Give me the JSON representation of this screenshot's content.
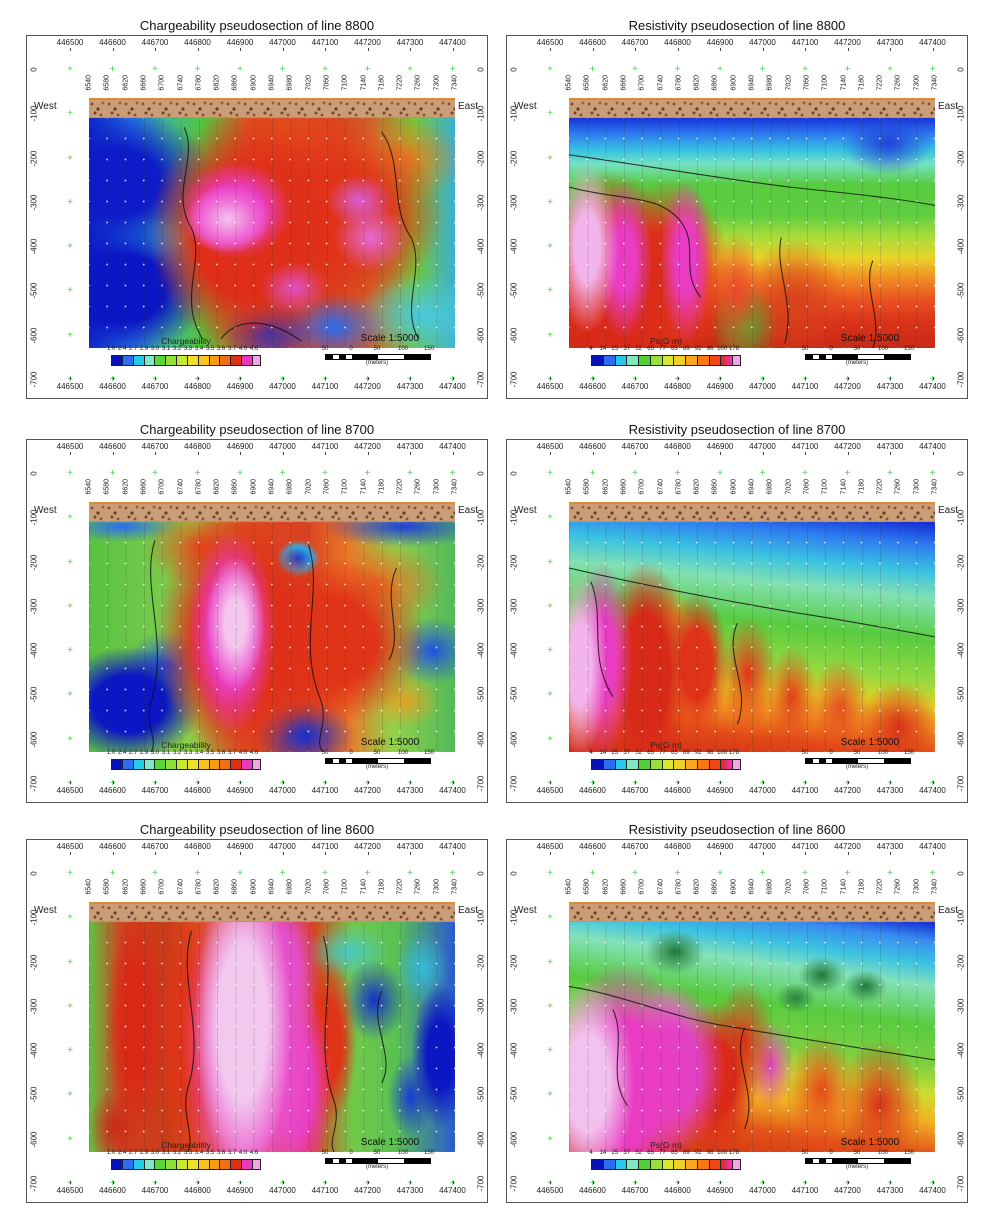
{
  "shared": {
    "west_label": "West",
    "east_label": "East",
    "eastings": [
      "446500",
      "446600",
      "446700",
      "446800",
      "446900",
      "447000",
      "447100",
      "447200",
      "447300",
      "447400"
    ],
    "stations": [
      "6540",
      "6580",
      "6620",
      "6660",
      "6700",
      "6740",
      "6780",
      "6820",
      "6860",
      "6900",
      "6940",
      "6980",
      "7020",
      "7060",
      "7100",
      "7140",
      "7180",
      "7220",
      "7260",
      "7300",
      "7340"
    ],
    "depths": [
      "0",
      "-100",
      "-200",
      "-300",
      "-400",
      "-500",
      "-600",
      "-700"
    ],
    "scale": {
      "title": "Scale 1:5000",
      "bar_labels": [
        "50",
        "0",
        "50",
        "100",
        "150"
      ],
      "unit": "(meters)"
    },
    "cross_color": "#3ec944",
    "colorbars": {
      "chargeability": {
        "title": "Chargeability",
        "ticks": [
          "1.0",
          "2.4",
          "2.7",
          "2.9",
          "3.0",
          "3.1",
          "3.2",
          "3.3",
          "3.4",
          "3.5",
          "3.6",
          "3.7",
          "4.0",
          "4.6"
        ],
        "colors": [
          "#0713b8",
          "#2e6cf0",
          "#28c8e8",
          "#80e8c8",
          "#58d838",
          "#90e038",
          "#c8e830",
          "#f0e028",
          "#f8c420",
          "#f89c18",
          "#f07018",
          "#e03018",
          "#e838c0"
        ],
        "tail_color": "#f2a6e6"
      },
      "resistivity": {
        "title": "Ps(Ω·m)",
        "ticks": [
          "4",
          "14",
          "25",
          "37",
          "52",
          "65",
          "77",
          "85",
          "89",
          "92",
          "96",
          "100",
          "178"
        ],
        "colors": [
          "#0713b8",
          "#2e6cf0",
          "#28c8e8",
          "#80e8c0",
          "#50d038",
          "#98e038",
          "#d8e830",
          "#f0d028",
          "#f8a820",
          "#f87818",
          "#f04818",
          "#e02818,#e838c0"
        ],
        "tail_color": "#f2a6e6"
      }
    }
  },
  "panels": [
    {
      "id": "panel-chargeability-8800",
      "title": "Chargeability pseudosection of line 8800",
      "colorbar": "chargeability",
      "section_style": "c8800"
    },
    {
      "id": "panel-resistivity-8800",
      "title": "Resistivity pseudosection of line 8800",
      "colorbar": "resistivity",
      "section_style": "r8800"
    },
    {
      "id": "panel-chargeability-8700",
      "title": "Chargeability pseudosection of line 8700",
      "colorbar": "chargeability",
      "section_style": "c8700"
    },
    {
      "id": "panel-resistivity-8700",
      "title": "Resistivity pseudosection of line 8700",
      "colorbar": "resistivity",
      "section_style": "r8700"
    },
    {
      "id": "panel-chargeability-8600",
      "title": "Chargeability pseudosection of line 8600",
      "colorbar": "chargeability",
      "section_style": "c8600"
    },
    {
      "id": "panel-resistivity-8600",
      "title": "Resistivity pseudosection of line 8600",
      "colorbar": "resistivity",
      "section_style": "r8600"
    }
  ],
  "chart_data": [
    {
      "type": "heatmap",
      "title": "Chargeability pseudosection of line 8800",
      "line": 8800,
      "quantity": "Chargeability",
      "x_easting_ticks": [
        446500,
        446600,
        446700,
        446800,
        446900,
        447000,
        447100,
        447200,
        447300,
        447400
      ],
      "station_ticks": [
        6540,
        6580,
        6620,
        6660,
        6700,
        6740,
        6780,
        6820,
        6860,
        6900,
        6940,
        6980,
        7020,
        7060,
        7100,
        7140,
        7180,
        7220,
        7260,
        7300,
        7340
      ],
      "depth_ticks_m": [
        0,
        -100,
        -200,
        -300,
        -400,
        -500,
        -600,
        -700
      ],
      "orientation_labels": [
        "West",
        "East"
      ],
      "colorbar_label": "Chargeability",
      "colorbar_ticks": [
        1.0,
        2.4,
        2.7,
        2.9,
        3.0,
        3.1,
        3.2,
        3.3,
        3.4,
        3.5,
        3.6,
        3.7,
        4.0,
        4.6
      ],
      "scale": "Scale 1:5000",
      "scale_bar_meters": [
        50,
        0,
        50,
        100,
        150
      ]
    },
    {
      "type": "heatmap",
      "title": "Resistivity pseudosection of line 8800",
      "line": 8800,
      "quantity": "Resistivity",
      "x_easting_ticks": [
        446500,
        446600,
        446700,
        446800,
        446900,
        447000,
        447100,
        447200,
        447300,
        447400
      ],
      "station_ticks": [
        6540,
        6580,
        6620,
        6660,
        6700,
        6740,
        6780,
        6820,
        6860,
        6900,
        6940,
        6980,
        7020,
        7060,
        7100,
        7140,
        7180,
        7220,
        7260,
        7300,
        7340
      ],
      "depth_ticks_m": [
        0,
        -100,
        -200,
        -300,
        -400,
        -500,
        -600,
        -700
      ],
      "orientation_labels": [
        "West",
        "East"
      ],
      "colorbar_label": "Ps(Ω·m)",
      "colorbar_ticks": [
        4,
        14,
        25,
        37,
        52,
        65,
        77,
        85,
        89,
        92,
        96,
        100,
        178
      ],
      "scale": "Scale 1:5000",
      "scale_bar_meters": [
        50,
        0,
        50,
        100,
        150
      ]
    },
    {
      "type": "heatmap",
      "title": "Chargeability pseudosection of line 8700",
      "line": 8700,
      "quantity": "Chargeability",
      "x_easting_ticks": [
        446500,
        446600,
        446700,
        446800,
        446900,
        447000,
        447100,
        447200,
        447300,
        447400
      ],
      "station_ticks": [
        6540,
        6580,
        6620,
        6660,
        6700,
        6740,
        6780,
        6820,
        6860,
        6900,
        6940,
        6980,
        7020,
        7060,
        7100,
        7140,
        7180,
        7220,
        7260,
        7300,
        7340
      ],
      "depth_ticks_m": [
        0,
        -100,
        -200,
        -300,
        -400,
        -500,
        -600,
        -700
      ],
      "orientation_labels": [
        "West",
        "East"
      ],
      "colorbar_label": "Chargeability",
      "colorbar_ticks": [
        1.0,
        2.4,
        2.7,
        2.9,
        3.0,
        3.1,
        3.2,
        3.3,
        3.4,
        3.5,
        3.6,
        3.7,
        4.0,
        4.6
      ],
      "scale": "Scale 1:5000",
      "scale_bar_meters": [
        50,
        0,
        50,
        100,
        150
      ]
    },
    {
      "type": "heatmap",
      "title": "Resistivity pseudosection of line 8700",
      "line": 8700,
      "quantity": "Resistivity",
      "x_easting_ticks": [
        446500,
        446600,
        446700,
        446800,
        446900,
        447000,
        447100,
        447200,
        447300,
        447400
      ],
      "station_ticks": [
        6540,
        6580,
        6620,
        6660,
        6700,
        6740,
        6780,
        6820,
        6860,
        6900,
        6940,
        6980,
        7020,
        7060,
        7100,
        7140,
        7180,
        7220,
        7260,
        7300,
        7340
      ],
      "depth_ticks_m": [
        0,
        -100,
        -200,
        -300,
        -400,
        -500,
        -600,
        -700
      ],
      "orientation_labels": [
        "West",
        "East"
      ],
      "colorbar_label": "Ps(Ω·m)",
      "colorbar_ticks": [
        4,
        14,
        25,
        37,
        52,
        65,
        77,
        85,
        89,
        92,
        96,
        100,
        178
      ],
      "scale": "Scale 1:5000",
      "scale_bar_meters": [
        50,
        0,
        50,
        100,
        150
      ]
    },
    {
      "type": "heatmap",
      "title": "Chargeability pseudosection of line 8600",
      "line": 8600,
      "quantity": "Chargeability",
      "x_easting_ticks": [
        446500,
        446600,
        446700,
        446800,
        446900,
        447000,
        447100,
        447200,
        447300,
        447400
      ],
      "station_ticks": [
        6540,
        6580,
        6620,
        6660,
        6700,
        6740,
        6780,
        6820,
        6860,
        6900,
        6940,
        6980,
        7020,
        7060,
        7100,
        7140,
        7180,
        7220,
        7260,
        7300,
        7340
      ],
      "depth_ticks_m": [
        0,
        -100,
        -200,
        -300,
        -400,
        -500,
        -600,
        -700
      ],
      "orientation_labels": [
        "West",
        "East"
      ],
      "colorbar_label": "Chargeability",
      "colorbar_ticks": [
        1.0,
        2.4,
        2.7,
        2.9,
        3.0,
        3.1,
        3.2,
        3.3,
        3.4,
        3.5,
        3.6,
        3.7,
        4.0,
        4.6
      ],
      "scale": "Scale 1:5000",
      "scale_bar_meters": [
        50,
        0,
        50,
        100,
        150
      ]
    },
    {
      "type": "heatmap",
      "title": "Resistivity pseudosection of line 8600",
      "line": 8600,
      "quantity": "Resistivity",
      "x_easting_ticks": [
        446500,
        446600,
        446700,
        446800,
        446900,
        447000,
        447100,
        447200,
        447300,
        447400
      ],
      "station_ticks": [
        6540,
        6580,
        6620,
        6660,
        6700,
        6740,
        6780,
        6820,
        6860,
        6900,
        6940,
        6980,
        7020,
        7060,
        7100,
        7140,
        7180,
        7220,
        7260,
        7300,
        7340
      ],
      "depth_ticks_m": [
        0,
        -100,
        -200,
        -300,
        -400,
        -500,
        -600,
        -700
      ],
      "orientation_labels": [
        "West",
        "East"
      ],
      "colorbar_label": "Ps(Ω·m)",
      "colorbar_ticks": [
        4,
        14,
        25,
        37,
        52,
        65,
        77,
        85,
        89,
        92,
        96,
        100,
        178
      ],
      "scale": "Scale 1:5000",
      "scale_bar_meters": [
        50,
        0,
        50,
        100,
        150
      ]
    }
  ]
}
